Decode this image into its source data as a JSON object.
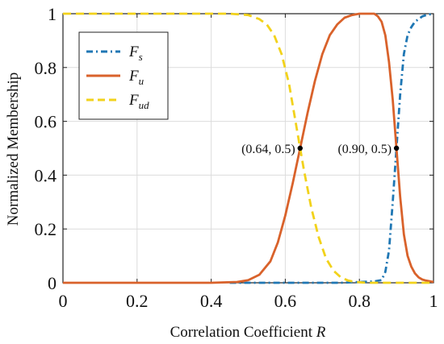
{
  "chart_data": {
    "type": "line",
    "xlabel_main": "Correlation Coefficient ",
    "xlabel_var": "R",
    "ylabel": "Normalized Membership",
    "xlim": [
      0,
      1
    ],
    "ylim": [
      0,
      1
    ],
    "xticks": [
      0,
      0.2,
      0.4,
      0.6,
      0.8,
      1
    ],
    "yticks": [
      0,
      0.2,
      0.4,
      0.6,
      0.8,
      1
    ],
    "xtick_labels": [
      "0",
      "0.2",
      "0.4",
      "0.6",
      "0.8",
      "1"
    ],
    "ytick_labels": [
      "0",
      "0.2",
      "0.4",
      "0.6",
      "0.8",
      "1"
    ],
    "grid": true,
    "legend_position": "top-left",
    "series": [
      {
        "name_main": "F",
        "name_sub": "s",
        "color": "#1f77b4",
        "style": "dash-dot",
        "x": [
          0.45,
          0.55,
          0.65,
          0.75,
          0.84,
          0.86,
          0.87,
          0.88,
          0.89,
          0.9,
          0.91,
          0.92,
          0.93,
          0.94,
          0.95,
          0.96,
          0.97,
          0.98,
          1.0
        ],
        "y": [
          0,
          0,
          0,
          0,
          0.005,
          0.01,
          0.04,
          0.12,
          0.3,
          0.5,
          0.7,
          0.85,
          0.92,
          0.95,
          0.97,
          0.98,
          0.99,
          0.995,
          1.0
        ]
      },
      {
        "name_main": "F",
        "name_sub": "u",
        "color": "#d9622b",
        "style": "solid",
        "x": [
          0,
          0.2,
          0.4,
          0.47,
          0.5,
          0.53,
          0.56,
          0.58,
          0.6,
          0.62,
          0.64,
          0.66,
          0.68,
          0.7,
          0.72,
          0.74,
          0.76,
          0.78,
          0.8,
          0.82,
          0.84,
          0.85,
          0.86,
          0.87,
          0.88,
          0.89,
          0.9,
          0.91,
          0.92,
          0.93,
          0.94,
          0.95,
          0.96,
          0.97,
          0.98,
          1.0
        ],
        "y": [
          0,
          0,
          0,
          0.003,
          0.01,
          0.03,
          0.08,
          0.15,
          0.25,
          0.37,
          0.5,
          0.63,
          0.75,
          0.85,
          0.92,
          0.96,
          0.985,
          0.995,
          1.0,
          1.0,
          1.0,
          0.99,
          0.97,
          0.92,
          0.82,
          0.68,
          0.5,
          0.32,
          0.18,
          0.1,
          0.06,
          0.035,
          0.02,
          0.012,
          0.008,
          0.003
        ]
      },
      {
        "name_main": "F",
        "name_sub": "ud",
        "color": "#f2d21b",
        "style": "dashed",
        "x": [
          0,
          0.3,
          0.45,
          0.5,
          0.53,
          0.55,
          0.57,
          0.59,
          0.61,
          0.63,
          0.64,
          0.65,
          0.67,
          0.69,
          0.71,
          0.73,
          0.75,
          0.77,
          0.79,
          0.81,
          0.83,
          0.85,
          0.9,
          1.0
        ],
        "y": [
          1.0,
          1.0,
          1.0,
          0.995,
          0.98,
          0.96,
          0.92,
          0.85,
          0.74,
          0.58,
          0.5,
          0.42,
          0.28,
          0.17,
          0.09,
          0.045,
          0.02,
          0.008,
          0.003,
          0.001,
          0.0,
          0.0,
          0.0,
          0.0
        ]
      }
    ],
    "annotations": [
      {
        "label": "(0.64, 0.5)",
        "x": 0.64,
        "y": 0.5,
        "side": "left"
      },
      {
        "label": "(0.90, 0.5)",
        "x": 0.9,
        "y": 0.5,
        "side": "left"
      }
    ]
  }
}
